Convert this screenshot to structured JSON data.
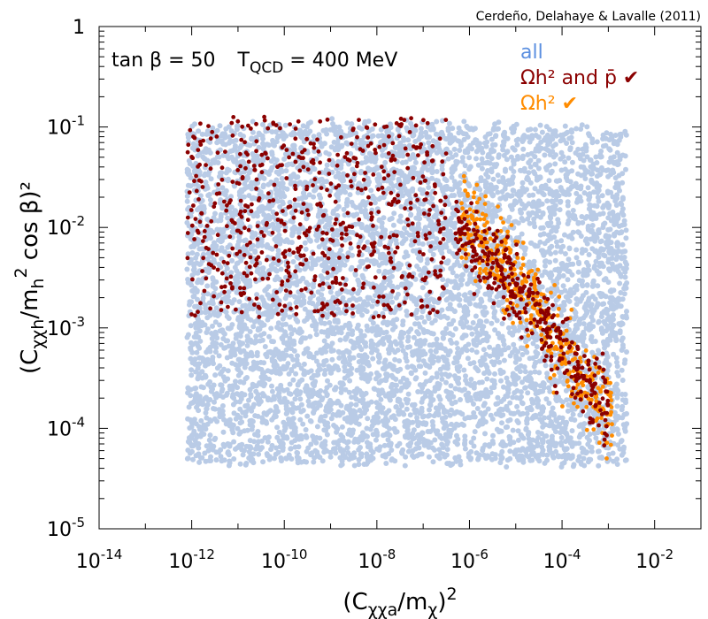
{
  "credit": "Cerdeño, Delahaye & Lavalle (2011)",
  "chart_data": {
    "type": "scatter",
    "title": "",
    "annotation": {
      "tan_beta_label": "tan β = 50",
      "tqcd_label": "T",
      "tqcd_sub": "QCD",
      "tqcd_value": " = 400 MeV"
    },
    "xlabel": {
      "pre": "(C",
      "sub": "χχa",
      "mid": "/m",
      "sub2": "χ",
      "post": ")",
      "sup": "2"
    },
    "ylabel": {
      "pre": "(C",
      "sub": "χχh",
      "mid": "/m",
      "sub2": "h",
      "sup": "2",
      "post": " cos β)²"
    },
    "xscale": "log",
    "yscale": "log",
    "xlim_log10": [
      -14,
      -1
    ],
    "ylim_log10": [
      -5,
      0
    ],
    "xticks": [
      {
        "log": -14,
        "base": "10",
        "exp": "-14"
      },
      {
        "log": -12,
        "base": "10",
        "exp": "-12"
      },
      {
        "log": -10,
        "base": "10",
        "exp": "-10"
      },
      {
        "log": -8,
        "base": "10",
        "exp": "-8"
      },
      {
        "log": -6,
        "base": "10",
        "exp": "-6"
      },
      {
        "log": -4,
        "base": "10",
        "exp": "-4"
      },
      {
        "log": -2,
        "base": "10",
        "exp": "-2"
      }
    ],
    "yticks": [
      {
        "log": 0,
        "base": "1",
        "exp": ""
      },
      {
        "log": -1,
        "base": "10",
        "exp": "-1"
      },
      {
        "log": -2,
        "base": "10",
        "exp": "-2"
      },
      {
        "log": -3,
        "base": "10",
        "exp": "-3"
      },
      {
        "log": -4,
        "base": "10",
        "exp": "-4"
      },
      {
        "log": -5,
        "base": "10",
        "exp": "-5"
      }
    ],
    "legend_position": "top-right",
    "series": [
      {
        "name": "all",
        "color": "#b9cbe6",
        "marker_size": 3,
        "description": "dense uniform cloud",
        "x_range_log10": [
          -12.1,
          -2.6
        ],
        "y_range_log10": [
          -4.35,
          -0.86
        ],
        "upper_edge_log10": [
          [
            -12.1,
            -1.0
          ],
          [
            -8,
            -0.95
          ],
          [
            -4,
            -1.0
          ],
          [
            -2.6,
            -1.05
          ]
        ],
        "n_points": 6500
      },
      {
        "name": "Ωh² and p̄ ✔",
        "color": "#8b0000",
        "marker_size": 4,
        "clusters": [
          {
            "x_range_log10": [
              -12.1,
              -6.5
            ],
            "y_range_log10": [
              -2.9,
              -0.9
            ],
            "n_points": 620
          },
          {
            "x_range_log10": [
              -6.3,
              -3.0
            ],
            "y_center_at_x": [
              [
                -6.3,
                -2.0
              ],
              [
                -5.0,
                -2.6
              ],
              [
                -3.0,
                -3.8
              ]
            ],
            "y_spread_log10": 0.6,
            "n_points": 330
          }
        ]
      },
      {
        "name": "Ωh² ✔",
        "color": "#ff8c00",
        "marker_size": 4,
        "clusters": [
          {
            "x_range_log10": [
              -6.2,
              -2.9
            ],
            "y_center_at_x": [
              [
                -6.2,
                -1.9
              ],
              [
                -5.0,
                -2.5
              ],
              [
                -4.0,
                -3.2
              ],
              [
                -2.9,
                -3.9
              ]
            ],
            "y_spread_log10": 0.65,
            "n_points": 420
          }
        ]
      }
    ]
  }
}
